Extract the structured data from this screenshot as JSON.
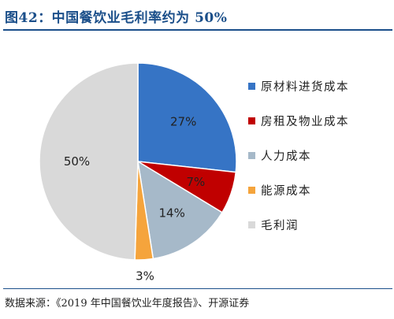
{
  "header": {
    "title": "图42：中国餐饮业毛利率约为 50%"
  },
  "footer": {
    "source": "数据来源：《2019 年中国餐饮业年度报告》、开源证券"
  },
  "chart_data": {
    "type": "pie",
    "title": "",
    "legend_position": "right",
    "slices": [
      {
        "label": "原材料进货成本",
        "value": 27,
        "display": "27%",
        "color": "#3674c5"
      },
      {
        "label": "房租及物业成本",
        "value": 7,
        "display": "7%",
        "color": "#c00000"
      },
      {
        "label": "人力成本",
        "value": 14,
        "display": "14%",
        "color": "#a6b9c9"
      },
      {
        "label": "能源成本",
        "value": 3,
        "display": "3%",
        "color": "#f5a43c"
      },
      {
        "label": "毛利润",
        "value": 50,
        "display": "50%",
        "color": "#d9d9d9"
      }
    ]
  }
}
